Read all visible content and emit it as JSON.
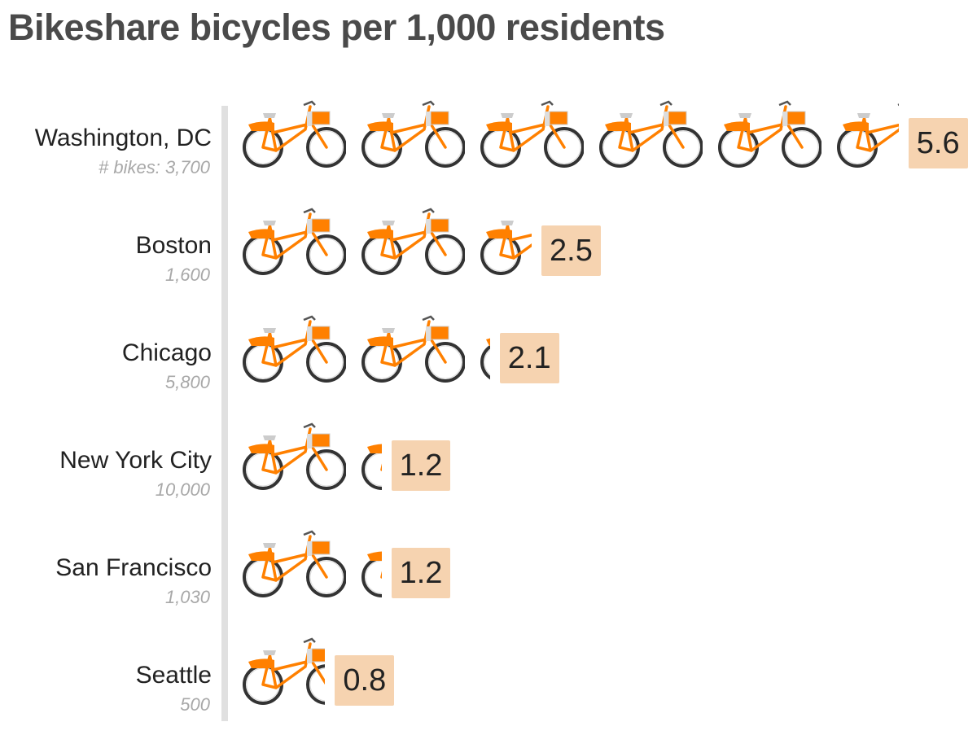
{
  "chart_data": {
    "type": "bar",
    "style": "pictogram",
    "title": "Bikeshare bicycles per 1,000 residents",
    "categories": [
      "Washington, DC",
      "Boston",
      "Chicago",
      "New York City",
      "San Francisco",
      "Seattle"
    ],
    "counts": [
      "# bikes: 3,700",
      "1,600",
      "5,800",
      "10,000",
      "1,030",
      "500"
    ],
    "values": [
      5.6,
      2.5,
      2.1,
      1.2,
      1.2,
      0.8
    ],
    "value_labels": [
      "5.6",
      "2.5",
      "2.1",
      "1.2",
      "1.2",
      "0.8"
    ],
    "icon": "bicycle-icon",
    "colors": {
      "bike": "#ff8000",
      "label_bg": "#f6d3b0",
      "title": "#4a4a4a"
    }
  }
}
